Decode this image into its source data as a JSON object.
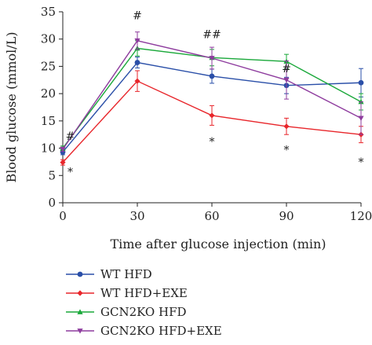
{
  "chart_data": {
    "type": "line",
    "xlabel": "Time after glucose injection (min)",
    "ylabel": "Blood glucose (mmol/L)",
    "x": [
      0,
      30,
      60,
      90,
      120
    ],
    "xticks": [
      "0",
      "30",
      "60",
      "90",
      "120"
    ],
    "yticks": [
      "0",
      "5",
      "10",
      "15",
      "20",
      "25",
      "30",
      "35"
    ],
    "xlim": [
      0,
      120
    ],
    "ylim": [
      0,
      35
    ],
    "grid": false,
    "legend_position": "bottom-left",
    "series": [
      {
        "name": "WT HFD",
        "color": "#2a4fa8",
        "marker": "circle",
        "values": [
          9.3,
          25.7,
          23.2,
          21.5,
          22.0
        ],
        "errors": [
          0.5,
          1.0,
          1.3,
          1.5,
          2.6
        ]
      },
      {
        "name": "WT HFD+EXE",
        "color": "#e8262b",
        "marker": "diamond",
        "values": [
          7.4,
          22.3,
          16.0,
          14.0,
          12.5
        ],
        "errors": [
          0.5,
          1.9,
          1.8,
          1.5,
          1.5
        ]
      },
      {
        "name": "GCN2KO HFD",
        "color": "#1aa83a",
        "marker": "triangle",
        "values": [
          10.0,
          28.3,
          26.6,
          25.9,
          18.5
        ],
        "errors": [
          0.4,
          1.4,
          1.5,
          1.3,
          1.5
        ]
      },
      {
        "name": "GCN2KO HFD+EXE",
        "color": "#8e3c9e",
        "marker": "triangle-down",
        "values": [
          9.8,
          29.7,
          26.5,
          22.5,
          15.5
        ],
        "errors": [
          0.4,
          1.6,
          2.0,
          3.5,
          3.0
        ]
      }
    ],
    "annotations": [
      {
        "text": "#",
        "x": 3,
        "y": 11.5
      },
      {
        "text": "*",
        "x": 3,
        "y": 5.0
      },
      {
        "text": "#",
        "x": 30,
        "y": 33.6
      },
      {
        "text": "##",
        "x": 60,
        "y": 30.2
      },
      {
        "text": "*",
        "x": 60,
        "y": 10.5
      },
      {
        "text": "#",
        "x": 90,
        "y": 23.9
      },
      {
        "text": "*",
        "x": 90,
        "y": 9.0
      },
      {
        "text": "*",
        "x": 120,
        "y": 6.8
      }
    ]
  }
}
